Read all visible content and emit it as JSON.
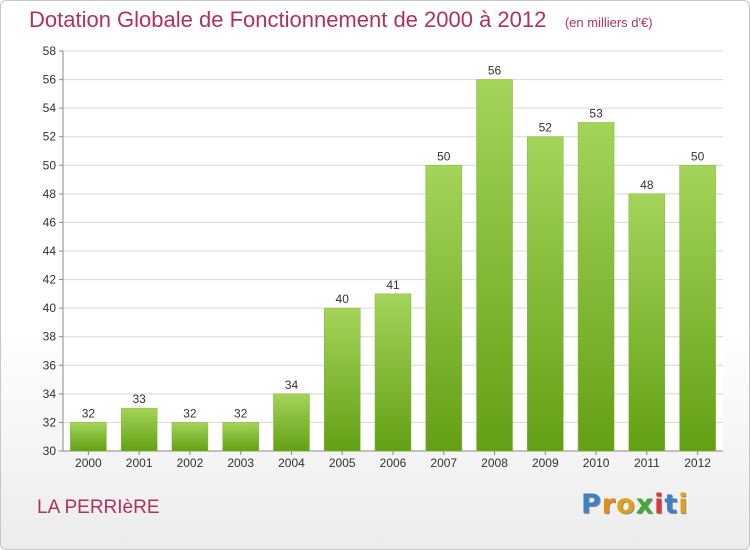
{
  "header": {
    "title": "Dotation Globale de Fonctionnement de 2000 à 2012",
    "subtitle": "(en milliers d'€)"
  },
  "footer": {
    "town": "LA PERRIèRE",
    "logo_letters": [
      "P",
      "r",
      "o",
      "x",
      "i",
      "t",
      "i"
    ]
  },
  "colors": {
    "title": "#b0325c",
    "bar_top": "#a4d45a",
    "bar_bottom": "#63a014",
    "logo": [
      "#3f7fc8",
      "#e68a1a",
      "#e0a21a",
      "#3faa3a",
      "#d63a3a",
      "#3f7fc8",
      "#e0a21a"
    ]
  },
  "chart_data": {
    "type": "bar",
    "categories": [
      "2000",
      "2001",
      "2002",
      "2003",
      "2004",
      "2005",
      "2006",
      "2007",
      "2008",
      "2009",
      "2010",
      "2011",
      "2012"
    ],
    "values": [
      32,
      33,
      32,
      32,
      34,
      40,
      41,
      50,
      56,
      52,
      53,
      48,
      50
    ],
    "title": "Dotation Globale de Fonctionnement de 2000 à 2012",
    "subtitle": "(en milliers d'€)",
    "ylim": [
      30,
      58
    ],
    "yticks": [
      30,
      32,
      34,
      36,
      38,
      40,
      42,
      44,
      46,
      48,
      50,
      52,
      54,
      56,
      58
    ],
    "grid": true
  }
}
